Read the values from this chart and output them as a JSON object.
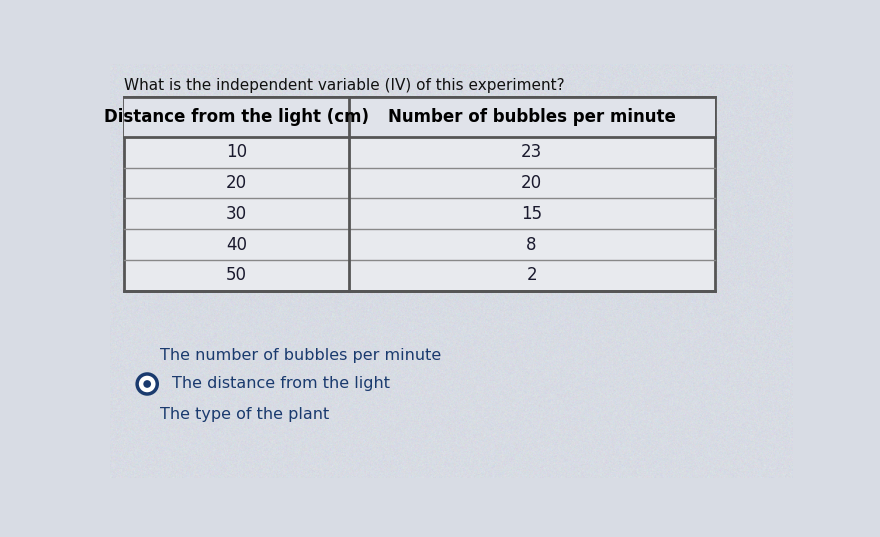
{
  "title": "What is the independent variable (IV) of this experiment?",
  "col1_header": "Distance from the light (cm)",
  "col2_header": "Number of bubbles per minute",
  "col1_values": [
    "10",
    "20",
    "30",
    "40",
    "50"
  ],
  "col2_values": [
    "23",
    "20",
    "15",
    "8",
    "2"
  ],
  "options": [
    {
      "text": "The number of bubbles per minute",
      "has_radio": false,
      "selected": false
    },
    {
      "text": "The distance from the light",
      "has_radio": true,
      "selected": true
    },
    {
      "text": "The type of the plant",
      "has_radio": false,
      "selected": false
    }
  ],
  "bg_color": "#d8dce4",
  "table_bg_color": "#e8eaee",
  "header_bg_color": "#e0e3ea",
  "cell_text_color": "#1a1a2e",
  "header_text_color": "#000000",
  "title_color": "#111111",
  "option_color": "#1a3a6e",
  "table_border_color": "#555555",
  "table_line_color": "#888888",
  "radio_color": "#1a3a6e"
}
